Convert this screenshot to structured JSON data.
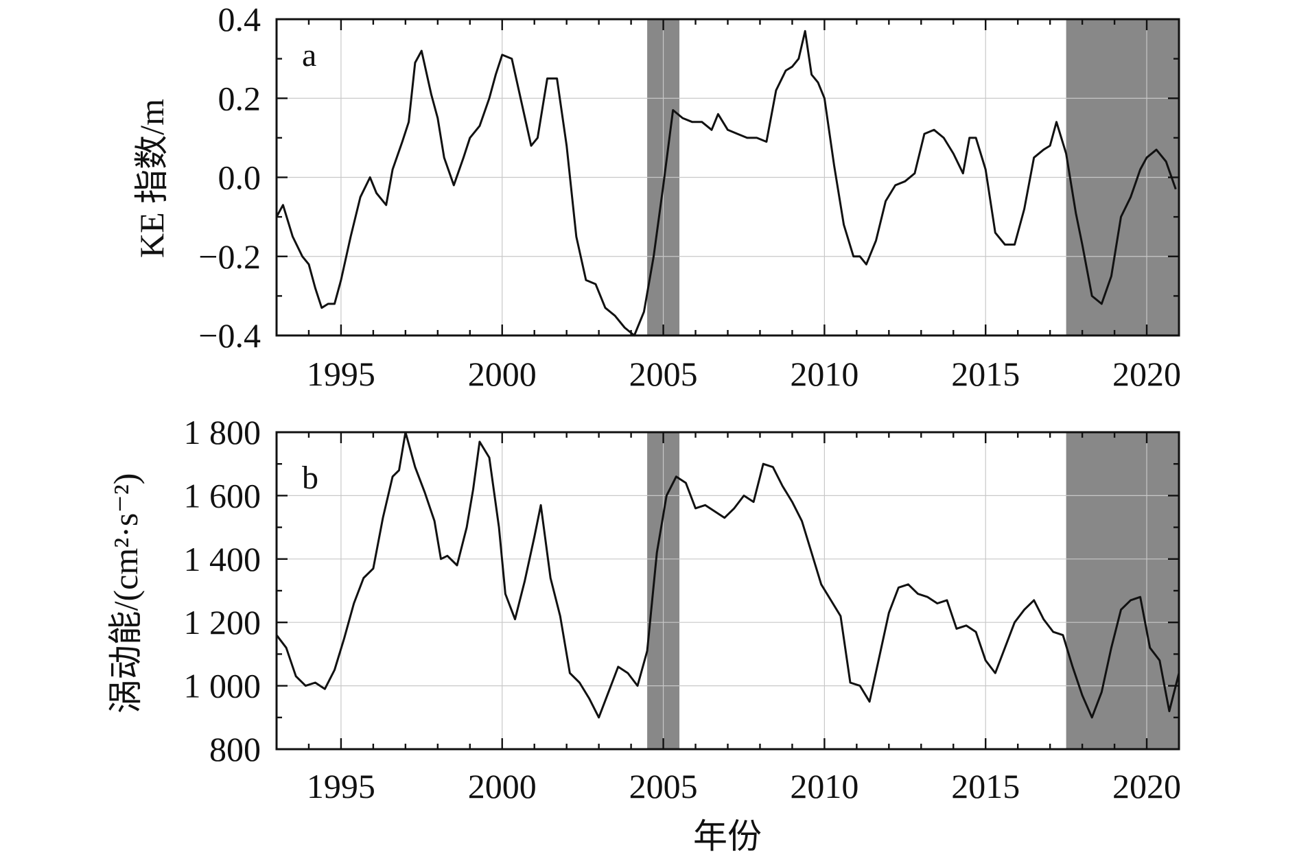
{
  "chart_data": [
    {
      "type": "line",
      "panel_label": "a",
      "ylabel": "KE 指数/m",
      "xlabel": "",
      "xlim": [
        1993.0,
        2021.0
      ],
      "ylim": [
        -0.4,
        0.4
      ],
      "x_ticks": [
        1995,
        2000,
        2005,
        2010,
        2015,
        2020
      ],
      "y_ticks": [
        -0.4,
        -0.2,
        0.0,
        0.2,
        0.4
      ],
      "y_tick_labels": [
        "−0.4",
        "−0.2",
        "0.0",
        "0.2",
        "0.4"
      ],
      "grid": true,
      "shaded_x_ranges": [
        [
          2004.5,
          2005.5
        ],
        [
          2017.5,
          2021.0
        ]
      ],
      "shade_color": "#888888",
      "line_color": "#111111",
      "series": [
        {
          "x": [
            1993.0,
            1993.2,
            1993.5,
            1993.8,
            1994.0,
            1994.2,
            1994.4,
            1994.6,
            1994.8,
            1995.0,
            1995.3,
            1995.6,
            1995.9,
            1996.1,
            1996.4,
            1996.6,
            1996.9,
            1997.1,
            1997.3,
            1997.5,
            1997.8,
            1998.0,
            1998.2,
            1998.5,
            1998.8,
            1999.0,
            1999.3,
            1999.6,
            1999.8,
            2000.0,
            2000.3,
            2000.6,
            2000.9,
            2001.1,
            2001.4,
            2001.7,
            2002.0,
            2002.3,
            2002.6,
            2002.9,
            2003.2,
            2003.5,
            2003.8,
            2004.1,
            2004.4,
            2004.7,
            2005.0,
            2005.3,
            2005.6,
            2005.9,
            2006.2,
            2006.5,
            2006.7,
            2007.0,
            2007.3,
            2007.6,
            2007.9,
            2008.2,
            2008.5,
            2008.8,
            2009.0,
            2009.2,
            2009.4,
            2009.6,
            2009.8,
            2010.0,
            2010.3,
            2010.6,
            2010.9,
            2011.1,
            2011.3,
            2011.6,
            2011.9,
            2012.2,
            2012.5,
            2012.8,
            2013.1,
            2013.4,
            2013.7,
            2014.0,
            2014.3,
            2014.5,
            2014.7,
            2015.0,
            2015.3,
            2015.6,
            2015.9,
            2016.2,
            2016.5,
            2016.8,
            2017.0,
            2017.2,
            2017.5,
            2017.8,
            2018.0,
            2018.3,
            2018.6,
            2018.9,
            2019.2,
            2019.5,
            2019.8,
            2020.0,
            2020.3,
            2020.6,
            2020.9
          ],
          "y": [
            -0.1,
            -0.07,
            -0.15,
            -0.2,
            -0.22,
            -0.28,
            -0.33,
            -0.32,
            -0.32,
            -0.26,
            -0.15,
            -0.05,
            0.0,
            -0.04,
            -0.07,
            0.02,
            0.09,
            0.14,
            0.29,
            0.32,
            0.21,
            0.15,
            0.05,
            -0.02,
            0.05,
            0.1,
            0.13,
            0.2,
            0.26,
            0.31,
            0.3,
            0.19,
            0.08,
            0.1,
            0.25,
            0.25,
            0.08,
            -0.15,
            -0.26,
            -0.27,
            -0.33,
            -0.35,
            -0.38,
            -0.4,
            -0.34,
            -0.2,
            -0.02,
            0.17,
            0.15,
            0.14,
            0.14,
            0.12,
            0.16,
            0.12,
            0.11,
            0.1,
            0.1,
            0.09,
            0.22,
            0.27,
            0.28,
            0.3,
            0.37,
            0.26,
            0.24,
            0.2,
            0.03,
            -0.12,
            -0.2,
            -0.2,
            -0.22,
            -0.16,
            -0.06,
            -0.02,
            -0.01,
            0.01,
            0.11,
            0.12,
            0.1,
            0.06,
            0.01,
            0.1,
            0.1,
            0.02,
            -0.14,
            -0.17,
            -0.17,
            -0.08,
            0.05,
            0.07,
            0.08,
            0.14,
            0.06,
            -0.09,
            -0.17,
            -0.3,
            -0.32,
            -0.25,
            -0.1,
            -0.05,
            0.02,
            0.05,
            0.07,
            0.04,
            -0.03
          ]
        }
      ]
    },
    {
      "type": "line",
      "panel_label": "b",
      "ylabel": "涡动能/(cm²·s⁻²)",
      "xlabel": "年份",
      "xlim": [
        1993.0,
        2021.0
      ],
      "ylim": [
        800,
        1800
      ],
      "x_ticks": [
        1995,
        2000,
        2005,
        2010,
        2015,
        2020
      ],
      "y_ticks": [
        800,
        1000,
        1200,
        1400,
        1600,
        1800
      ],
      "y_tick_labels": [
        "800",
        "1 000",
        "1 200",
        "1 400",
        "1 600",
        "1 800"
      ],
      "grid": true,
      "shaded_x_ranges": [
        [
          2004.5,
          2005.5
        ],
        [
          2017.5,
          2021.0
        ]
      ],
      "shade_color": "#888888",
      "line_color": "#111111",
      "series": [
        {
          "x": [
            1993.0,
            1993.3,
            1993.6,
            1993.9,
            1994.2,
            1994.5,
            1994.8,
            1995.1,
            1995.4,
            1995.7,
            1996.0,
            1996.3,
            1996.6,
            1996.8,
            1997.0,
            1997.3,
            1997.6,
            1997.9,
            1998.1,
            1998.3,
            1998.6,
            1998.9,
            1999.1,
            1999.3,
            1999.6,
            1999.9,
            2000.1,
            2000.4,
            2000.7,
            2001.0,
            2001.2,
            2001.5,
            2001.8,
            2002.1,
            2002.4,
            2002.7,
            2003.0,
            2003.3,
            2003.6,
            2003.9,
            2004.2,
            2004.5,
            2004.8,
            2005.1,
            2005.4,
            2005.7,
            2006.0,
            2006.3,
            2006.6,
            2006.9,
            2007.2,
            2007.5,
            2007.8,
            2008.1,
            2008.4,
            2008.7,
            2009.0,
            2009.3,
            2009.6,
            2009.9,
            2010.2,
            2010.5,
            2010.8,
            2011.1,
            2011.4,
            2011.7,
            2012.0,
            2012.3,
            2012.6,
            2012.9,
            2013.2,
            2013.5,
            2013.8,
            2014.1,
            2014.4,
            2014.7,
            2015.0,
            2015.3,
            2015.6,
            2015.9,
            2016.2,
            2016.5,
            2016.8,
            2017.1,
            2017.4,
            2017.7,
            2018.0,
            2018.3,
            2018.6,
            2018.9,
            2019.2,
            2019.5,
            2019.8,
            2020.1,
            2020.4,
            2020.7,
            2021.0
          ],
          "y": [
            1160,
            1120,
            1030,
            1000,
            1010,
            990,
            1050,
            1150,
            1260,
            1340,
            1370,
            1530,
            1660,
            1680,
            1800,
            1690,
            1610,
            1520,
            1400,
            1410,
            1380,
            1500,
            1620,
            1770,
            1720,
            1500,
            1290,
            1210,
            1330,
            1470,
            1570,
            1340,
            1220,
            1040,
            1010,
            960,
            900,
            980,
            1060,
            1040,
            1000,
            1110,
            1420,
            1600,
            1660,
            1640,
            1560,
            1570,
            1550,
            1530,
            1560,
            1600,
            1580,
            1700,
            1690,
            1630,
            1580,
            1520,
            1420,
            1320,
            1270,
            1220,
            1010,
            1000,
            950,
            1090,
            1230,
            1310,
            1320,
            1290,
            1280,
            1260,
            1270,
            1180,
            1190,
            1170,
            1080,
            1040,
            1120,
            1200,
            1240,
            1270,
            1210,
            1170,
            1160,
            1060,
            970,
            900,
            980,
            1120,
            1240,
            1270,
            1280,
            1120,
            1080,
            920,
            1040
          ]
        }
      ]
    }
  ]
}
